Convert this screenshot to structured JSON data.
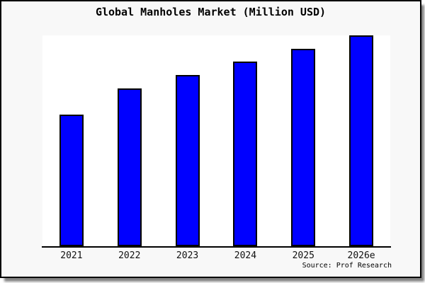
{
  "title": "Global Manholes Market (Million USD)",
  "source_credit": "Source: Prof Research",
  "colors": {
    "bar_fill": "#0000FF",
    "bar_border": "#000000",
    "figure_background": "#F8F8F8",
    "plot_background": "#FFFFFF",
    "axis_line": "#000000",
    "text": "#000000"
  },
  "chart_data": {
    "type": "bar",
    "title": "Global Manholes Market (Million USD)",
    "categories": [
      "2021",
      "2022",
      "2023",
      "2024",
      "2025",
      "2026e"
    ],
    "values": [
      62.4,
      74.8,
      81.1,
      87.5,
      93.5,
      99.9
    ],
    "xlabel": "",
    "ylabel": "",
    "ylim": [
      0,
      100
    ],
    "y_axis_labels_shown": false,
    "grid": false,
    "legend": false,
    "annotation": "Source: Prof Research"
  }
}
